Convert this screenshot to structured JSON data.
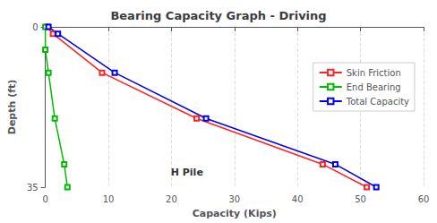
{
  "chart_data": {
    "type": "line",
    "title": "Bearing Capacity Graph - Driving",
    "subtitle": "H Pile",
    "xlabel": "Capacity (Kips)",
    "ylabel": "Depth (ft)",
    "xlim": [
      0,
      60
    ],
    "ylim": [
      35,
      0
    ],
    "xticks": [
      0,
      10,
      20,
      30,
      40,
      50,
      60
    ],
    "yticks": [
      0,
      35
    ],
    "grid": "x",
    "legend": "right",
    "marker": "square",
    "series": [
      {
        "name": "Skin Friction",
        "color": "#ff2222",
        "x": [
          0.3,
          1.2,
          9.0,
          24.0,
          44.0,
          51.0
        ],
        "values": [
          0,
          1.5,
          10,
          20,
          30,
          35
        ]
      },
      {
        "name": "End Bearing",
        "color": "#00bb00",
        "x": [
          0.0,
          0.0,
          0.5,
          1.5,
          3.0,
          3.5
        ],
        "values": [
          0,
          5,
          10,
          20,
          30,
          35
        ]
      },
      {
        "name": "Total Capacity",
        "color": "#0000ee",
        "x": [
          0.5,
          2.0,
          11.0,
          25.5,
          46.0,
          52.5
        ],
        "values": [
          0,
          1.5,
          10,
          20,
          30,
          35
        ]
      }
    ]
  }
}
